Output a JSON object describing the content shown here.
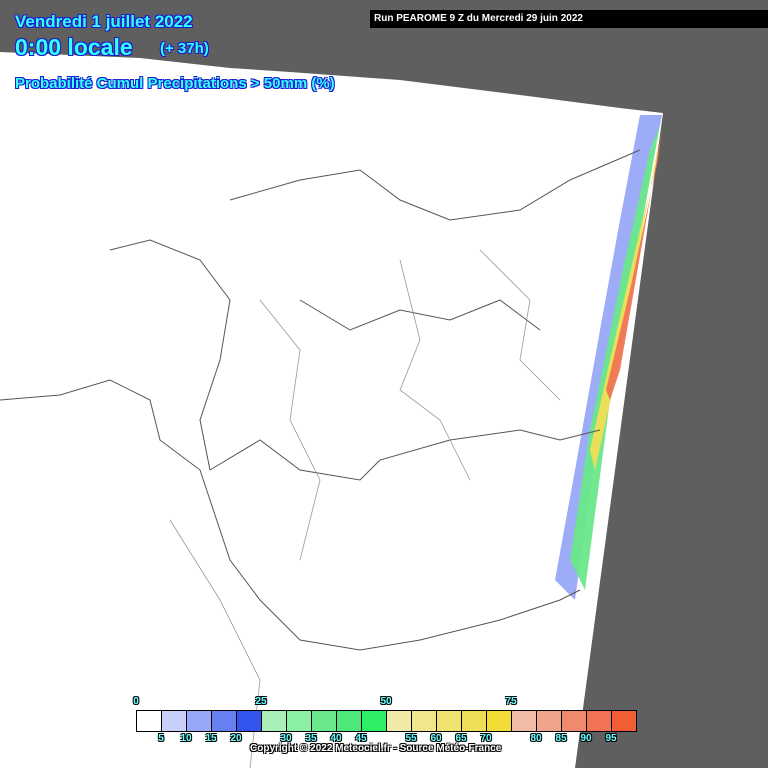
{
  "header": {
    "date": "Vendredi 1 juillet 2022",
    "time": "0:00 locale",
    "lead": "(+ 37h)",
    "parameter": "Probabilité Cumul Precipitations > 50mm (%)",
    "run": "Run PEAROME 9 Z du Mercredi 29 juin 2022"
  },
  "legend": {
    "colors": [
      "#ffffff",
      "#c8d0fa",
      "#98a8f6",
      "#6680f2",
      "#3355ee",
      "#a8f0b8",
      "#8cf0a4",
      "#6ae88a",
      "#4ce87a",
      "#2ef064",
      "#f0eaa8",
      "#f0e68c",
      "#f0e270",
      "#f0de56",
      "#f0dc34",
      "#f0bca8",
      "#f0a48c",
      "#f08a6e",
      "#f07454",
      "#f05e34"
    ],
    "top_labels": [
      "0",
      "25",
      "50",
      "75"
    ],
    "bottom_labels": [
      "5",
      "10",
      "15",
      "20",
      "30",
      "35",
      "40",
      "45",
      "55",
      "60",
      "65",
      "70",
      "80",
      "85",
      "90",
      "95"
    ]
  },
  "copyright": "Copyright © 2022 Meteociel.fr - Source Météo-France"
}
